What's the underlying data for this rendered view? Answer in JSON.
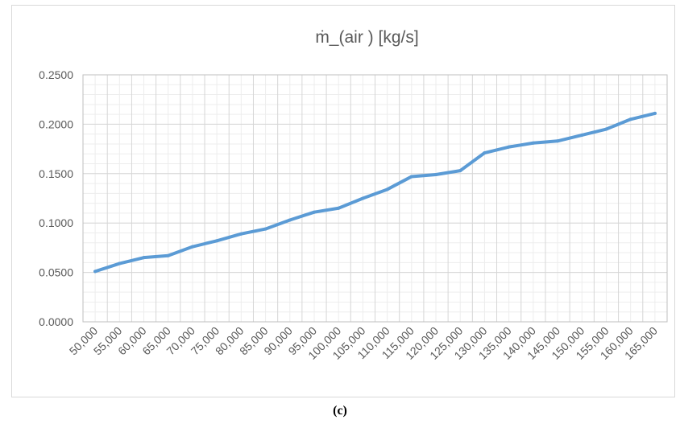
{
  "caption": "(c)",
  "chart_data": {
    "type": "line",
    "title": "ṁ_(air )  [kg/s]",
    "xlabel": "",
    "ylabel": "",
    "categories": [
      "50,000",
      "55,000",
      "60,000",
      "65,000",
      "70,000",
      "75,000",
      "80,000",
      "85,000",
      "90,000",
      "95,000",
      "100,000",
      "105,000",
      "110,000",
      "115,000",
      "120,000",
      "125,000",
      "130,000",
      "135,000",
      "140,000",
      "145,000",
      "150,000",
      "155,000",
      "160,000",
      "165,000"
    ],
    "series": [
      {
        "color": "#5b9bd5",
        "values": [
          0.051,
          0.059,
          0.065,
          0.067,
          0.076,
          0.082,
          0.089,
          0.094,
          0.103,
          0.111,
          0.115,
          0.125,
          0.134,
          0.147,
          0.149,
          0.153,
          0.171,
          0.177,
          0.181,
          0.183,
          0.189,
          0.195,
          0.205,
          0.211
        ]
      }
    ],
    "ylim": [
      0,
      0.25
    ],
    "yticks": [
      "0.0000",
      "0.0500",
      "0.1000",
      "0.1500",
      "0.2000",
      "0.2500"
    ],
    "grid": true,
    "minor_grid": true,
    "legend": "none"
  }
}
